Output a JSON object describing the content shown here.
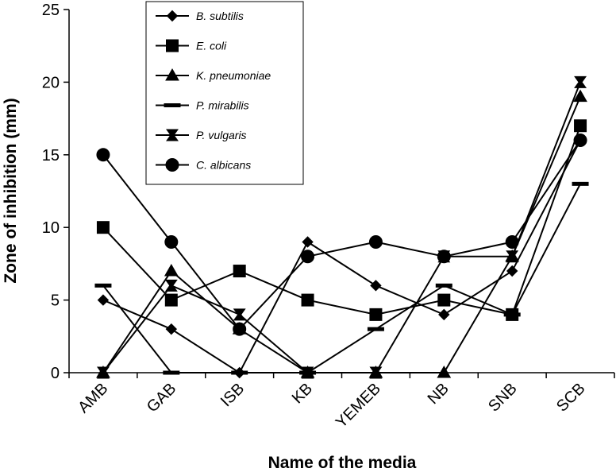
{
  "chart_data": {
    "type": "line",
    "title": "",
    "xlabel": "Name of the media",
    "ylabel": "Zone of inhibition (mm)",
    "ylim": [
      0,
      25
    ],
    "yticks": [
      "0",
      "5",
      "10",
      "15",
      "20",
      "25"
    ],
    "categories": [
      "AMB",
      "GAB",
      "ISB",
      "KB",
      "YEMEB",
      "NB",
      "SNB",
      "SCB"
    ],
    "grid": false,
    "legend_position": "top-center",
    "series": [
      {
        "name": "B. subtilis",
        "marker": "diamond",
        "values": [
          5,
          3,
          0,
          9,
          6,
          4,
          7,
          16
        ]
      },
      {
        "name": "E. coli",
        "marker": "square",
        "values": [
          10,
          5,
          7,
          5,
          4,
          5,
          4,
          17
        ]
      },
      {
        "name": "K. pneumoniae",
        "marker": "triangle",
        "values": [
          0,
          7,
          3,
          0,
          0,
          0,
          8,
          19
        ]
      },
      {
        "name": "P. mirabilis",
        "marker": "dash",
        "values": [
          6,
          0,
          0,
          0,
          3,
          6,
          4,
          13
        ]
      },
      {
        "name": "P. vulgaris",
        "marker": "hourglass",
        "values": [
          0,
          6,
          4,
          0,
          0,
          8,
          8,
          20
        ]
      },
      {
        "name": "C. albicans",
        "marker": "circle",
        "values": [
          15,
          9,
          3,
          8,
          9,
          8,
          9,
          16
        ]
      }
    ],
    "line_color": "#000000"
  }
}
